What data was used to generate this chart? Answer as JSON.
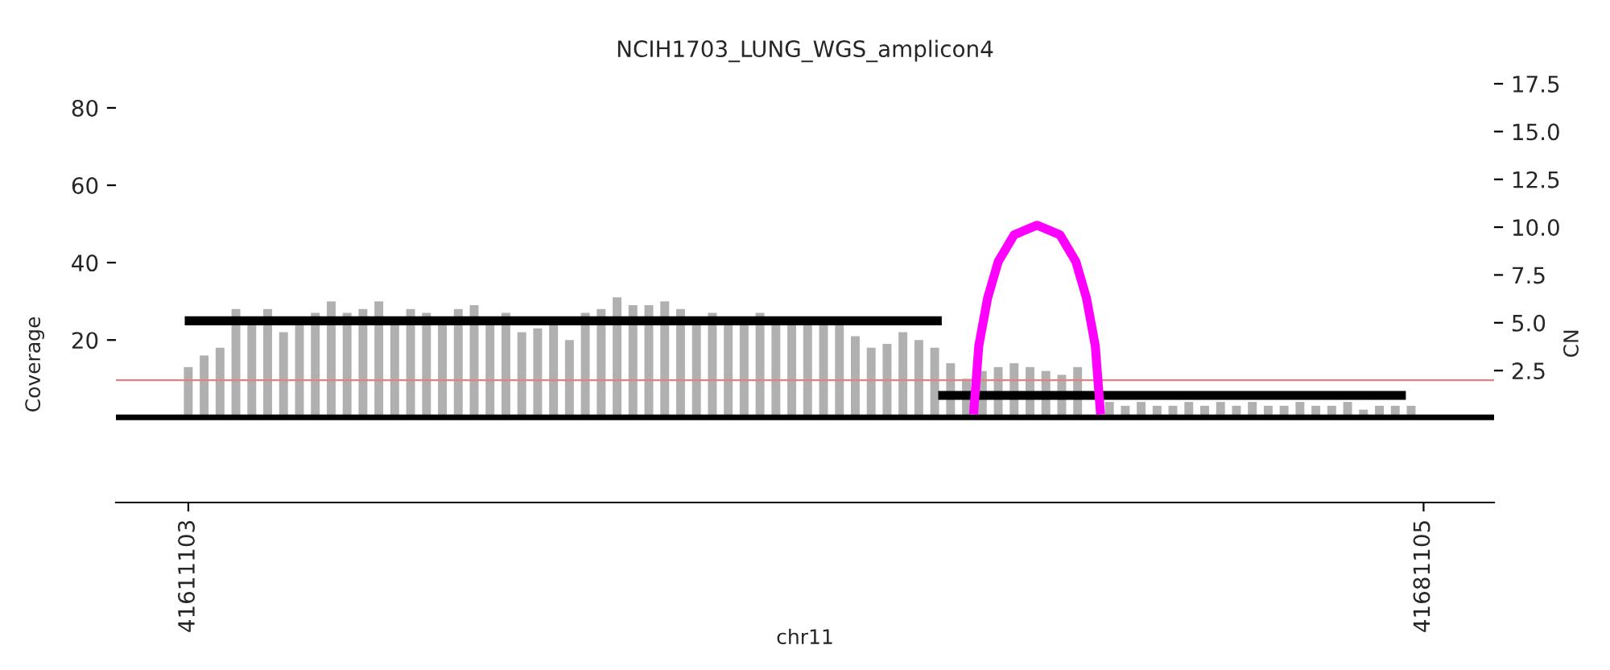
{
  "chart_data": {
    "type": "bar",
    "title": "NCIH1703_LUNG_WGS_amplicon4",
    "xlabel": "chr11",
    "ylabel": "Coverage",
    "y2label": "CN",
    "xlim": [
      41607000,
      41685100
    ],
    "xticks": [
      41611103,
      41681105
    ],
    "ylim": [
      -22,
      80
    ],
    "yticks": [
      20,
      40,
      60,
      80
    ],
    "y2lim": [
      -4.4,
      17.5
    ],
    "y2ticks": [
      {
        "value": 2.5,
        "label": "2.5"
      },
      {
        "value": 5.0,
        "label": "5.0"
      },
      {
        "value": 7.5,
        "label": "7.5"
      },
      {
        "value": 10.0,
        "label": "10.0"
      },
      {
        "value": 12.5,
        "label": "12.5"
      },
      {
        "value": 15.0,
        "label": "15.0"
      },
      {
        "value": 17.5,
        "label": "17.5"
      }
    ],
    "grid": false,
    "legend": false,
    "ref_lines": [
      {
        "axis": "y",
        "value": 0,
        "color": "#000000"
      },
      {
        "axis": "y2",
        "value": 2,
        "color": "#e88080"
      }
    ],
    "series": [
      {
        "color": "#b0b0b0",
        "x": [
          41611100,
          41612000,
          41612900,
          41613800,
          41614700,
          41615600,
          41616500,
          41617400,
          41618300,
          41619200,
          41620100,
          41621000,
          41621900,
          41622800,
          41623700,
          41624600,
          41625500,
          41626400,
          41627300,
          41628200,
          41629100,
          41630000,
          41630900,
          41631800,
          41632700,
          41633600,
          41634500,
          41635400,
          41636300,
          41637200,
          41638100,
          41639000,
          41639900,
          41640800,
          41641700,
          41642600,
          41643500,
          41644400,
          41645300,
          41646200,
          41647100,
          41648000,
          41648900,
          41649800,
          41650700,
          41651600,
          41652500,
          41653400,
          41654300,
          41655200,
          41656100,
          41657000,
          41657900,
          41658800,
          41659700,
          41660600,
          41661500,
          41662400,
          41663300,
          41664200,
          41665100,
          41666000,
          41666900,
          41667800,
          41668700,
          41669600,
          41670500,
          41671400,
          41672300,
          41673200,
          41674100,
          41675000,
          41675900,
          41676800,
          41677700,
          41678600,
          41679500,
          41680400
        ],
        "values": [
          13,
          16,
          18,
          28,
          26,
          28,
          22,
          24,
          27,
          30,
          27,
          28,
          30,
          26,
          28,
          27,
          25,
          28,
          29,
          25,
          27,
          22,
          23,
          25,
          20,
          27,
          28,
          31,
          29,
          29,
          30,
          28,
          26,
          27,
          25,
          26,
          27,
          25,
          26,
          26,
          26,
          25,
          21,
          18,
          19,
          22,
          20,
          18,
          14,
          10,
          12,
          13,
          14,
          13,
          12,
          11,
          13,
          null,
          4,
          3,
          4,
          3,
          3,
          4,
          3,
          4,
          3,
          4,
          3,
          3,
          4,
          3,
          3,
          4,
          2,
          3,
          3,
          3
        ]
      },
      {
        "type": "line",
        "axis": "y2",
        "color": "#000000",
        "x": [
          41610900,
          41653800
        ],
        "values": [
          5.1,
          5.1
        ]
      },
      {
        "type": "line",
        "axis": "y2",
        "color": "#000000",
        "x": [
          41653600,
          41680100
        ],
        "values": [
          1.2,
          1.2
        ]
      },
      {
        "type": "line",
        "axis": "y2",
        "color": "#ff00ff",
        "x": [
          41655600,
          41655900,
          41656400,
          41657000,
          41657900,
          41659200,
          41660500,
          41661400,
          41662000,
          41662500,
          41662800
        ],
        "values": [
          0.2,
          3.8,
          6.3,
          8.2,
          9.6,
          10.1,
          9.6,
          8.2,
          6.3,
          3.8,
          0.2
        ]
      }
    ]
  }
}
